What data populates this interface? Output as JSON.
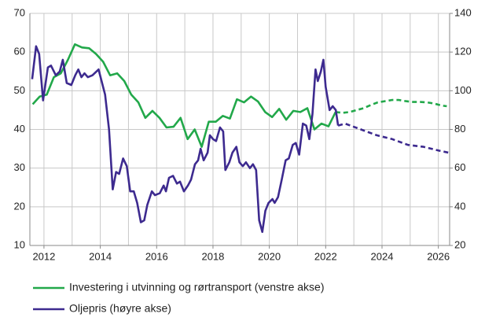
{
  "chart_data": {
    "type": "line",
    "xlim": [
      2011.5,
      2026.4
    ],
    "xticks": [
      2012,
      2014,
      2016,
      2018,
      2020,
      2022,
      2024,
      2026
    ],
    "minor_xticks": [
      2013,
      2015,
      2017,
      2019,
      2021,
      2023,
      2025
    ],
    "ylim": [
      10,
      70
    ],
    "yticks": [
      10,
      20,
      30,
      40,
      50,
      60,
      70
    ],
    "y2lim": [
      20,
      140
    ],
    "y2ticks": [
      20,
      40,
      60,
      80,
      100,
      120,
      140
    ],
    "grid": true,
    "legend": "bottom",
    "series": [
      {
        "name": "Investering i utvinning og rørtransport (venstre akse)",
        "color": "#22a84a",
        "axis": "y",
        "dashed_from": 2022.35,
        "x": [
          2011.6,
          2011.85,
          2012.1,
          2012.35,
          2012.6,
          2012.85,
          2013.1,
          2013.35,
          2013.6,
          2013.85,
          2014.1,
          2014.35,
          2014.6,
          2014.85,
          2015.1,
          2015.35,
          2015.6,
          2015.85,
          2016.1,
          2016.35,
          2016.6,
          2016.85,
          2017.1,
          2017.35,
          2017.6,
          2017.85,
          2018.1,
          2018.35,
          2018.6,
          2018.85,
          2019.1,
          2019.35,
          2019.6,
          2019.85,
          2020.1,
          2020.35,
          2020.6,
          2020.85,
          2021.1,
          2021.35,
          2021.6,
          2021.85,
          2022.1,
          2022.35,
          2022.6,
          2022.85,
          2023.1,
          2023.35,
          2023.6,
          2023.85,
          2024.1,
          2024.35,
          2024.6,
          2024.85,
          2025.1,
          2025.35,
          2025.6,
          2025.85,
          2026.1,
          2026.3
        ],
        "values": [
          46.5,
          48.5,
          49,
          53.5,
          54.5,
          58,
          62,
          61.2,
          61,
          59.5,
          57.5,
          54,
          54.5,
          52.5,
          49,
          47,
          43,
          44.8,
          43,
          40.5,
          40.7,
          43,
          37.5,
          40,
          35.5,
          42,
          42,
          43.5,
          42.8,
          47.8,
          47,
          48.5,
          47.2,
          44.5,
          43.2,
          45.3,
          42.5,
          44.8,
          44.5,
          45.5,
          40,
          41.5,
          40.8,
          44.5,
          44.3,
          44.5,
          45,
          45.5,
          46.3,
          47,
          47.3,
          47.6,
          47.6,
          47.3,
          47.1,
          47.1,
          47,
          46.7,
          46.2,
          46
        ]
      },
      {
        "name": "Oljepris (høyre akse)",
        "color": "#3d2a8f",
        "axis": "y2",
        "dashed_from": 2022.44,
        "x": [
          2011.58,
          2011.72,
          2011.83,
          2011.97,
          2012.14,
          2012.25,
          2012.42,
          2012.56,
          2012.67,
          2012.81,
          2012.97,
          2013.11,
          2013.22,
          2013.33,
          2013.44,
          2013.56,
          2013.72,
          2013.94,
          2014.17,
          2014.31,
          2014.44,
          2014.56,
          2014.67,
          2014.81,
          2014.94,
          2015.06,
          2015.19,
          2015.31,
          2015.44,
          2015.56,
          2015.67,
          2015.83,
          2015.94,
          2016.11,
          2016.25,
          2016.33,
          2016.44,
          2016.58,
          2016.72,
          2016.83,
          2016.97,
          2017.11,
          2017.22,
          2017.36,
          2017.47,
          2017.56,
          2017.67,
          2017.81,
          2017.89,
          2018.0,
          2018.11,
          2018.25,
          2018.36,
          2018.44,
          2018.58,
          2018.69,
          2018.83,
          2018.94,
          2019.06,
          2019.17,
          2019.31,
          2019.42,
          2019.53,
          2019.64,
          2019.75,
          2019.86,
          2019.97,
          2020.11,
          2020.19,
          2020.31,
          2020.44,
          2020.58,
          2020.69,
          2020.83,
          2020.94,
          2021.06,
          2021.19,
          2021.31,
          2021.42,
          2021.53,
          2021.64,
          2021.72,
          2021.83,
          2021.92,
          2022.0,
          2022.14,
          2022.25,
          2022.36,
          2022.44,
          2022.69,
          2023.25,
          2023.81,
          2024.36,
          2024.92,
          2025.47,
          2026.03,
          2026.36
        ],
        "values": [
          106,
          123,
          119,
          95,
          112,
          113,
          108,
          110,
          116,
          104,
          103,
          108,
          111,
          107,
          109,
          107,
          108,
          111,
          98,
          80,
          49,
          58,
          57,
          65,
          61,
          48,
          48,
          42,
          32,
          33,
          41,
          48,
          46,
          47,
          51,
          48,
          55,
          56,
          52,
          53,
          48,
          51,
          54,
          62,
          64,
          70,
          64,
          68,
          77,
          75,
          74,
          81,
          79,
          59,
          63,
          68,
          71,
          63,
          61,
          63,
          60,
          62,
          59,
          33,
          27,
          38,
          42,
          44,
          42,
          45,
          54,
          64,
          65,
          72,
          73,
          67,
          83,
          82,
          75,
          88,
          111,
          105,
          110,
          116,
          102,
          90,
          92,
          90,
          82,
          83,
          80,
          77,
          75,
          72,
          71,
          69,
          68
        ]
      }
    ]
  }
}
